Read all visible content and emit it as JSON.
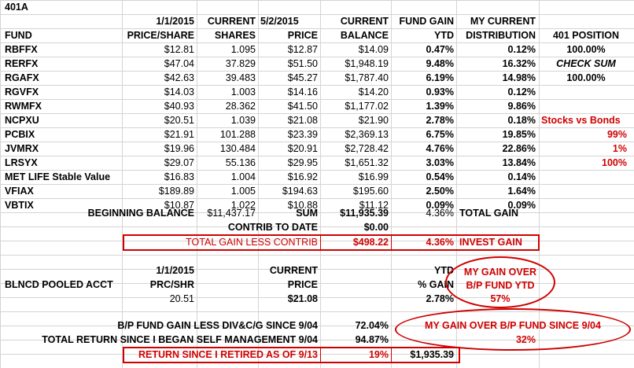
{
  "title": "401A",
  "header": {
    "row1": {
      "price_date": "1/1/2015",
      "shares": "CURRENT",
      "cur_date": "5/2/2015",
      "balance": "CURRENT",
      "gain": "FUND GAIN",
      "dist": "MY CURRENT"
    },
    "row2": {
      "fund": "FUND",
      "price": "PRICE/SHARE",
      "shares": "SHARES",
      "cur_price": "PRICE",
      "balance": "BALANCE",
      "gain": "YTD",
      "dist": "DISTRIBUTION",
      "position": "401 POSITION"
    }
  },
  "funds": [
    {
      "name": "RBFFX",
      "price": "$12.81",
      "shares": "1.095",
      "cur_price": "$12.87",
      "balance": "$14.09",
      "ytd": "0.47%",
      "dist": "0.12%"
    },
    {
      "name": "RERFX",
      "price": "$47.04",
      "shares": "37.829",
      "cur_price": "$51.50",
      "balance": "$1,948.19",
      "ytd": "9.48%",
      "dist": "16.32%"
    },
    {
      "name": "RGAFX",
      "price": "$42.63",
      "shares": "39.483",
      "cur_price": "$45.27",
      "balance": "$1,787.40",
      "ytd": "6.19%",
      "dist": "14.98%"
    },
    {
      "name": "RGVFX",
      "price": "$14.03",
      "shares": "1.003",
      "cur_price": "$14.16",
      "balance": "$14.20",
      "ytd": "0.93%",
      "dist": "0.12%"
    },
    {
      "name": "RWMFX",
      "price": "$40.93",
      "shares": "28.362",
      "cur_price": "$41.50",
      "balance": "$1,177.02",
      "ytd": "1.39%",
      "dist": "9.86%"
    },
    {
      "name": "NCPXU",
      "price": "$20.51",
      "shares": "1.039",
      "cur_price": "$21.08",
      "balance": "$21.90",
      "ytd": "2.78%",
      "dist": "0.18%"
    },
    {
      "name": "PCBIX",
      "price": "$21.91",
      "shares": "101.288",
      "cur_price": "$23.39",
      "balance": "$2,369.13",
      "ytd": "6.75%",
      "dist": "19.85%"
    },
    {
      "name": "JVMRX",
      "price": "$19.96",
      "shares": "130.484",
      "cur_price": "$20.91",
      "balance": "$2,728.42",
      "ytd": "4.76%",
      "dist": "22.86%"
    },
    {
      "name": "LRSYX",
      "price": "$29.07",
      "shares": "55.136",
      "cur_price": "$29.95",
      "balance": "$1,651.32",
      "ytd": "3.03%",
      "dist": "13.84%"
    },
    {
      "name": "MET LIFE Stable Value",
      "price": "$16.83",
      "shares": "1.004",
      "cur_price": "$16.92",
      "balance": "$16.99",
      "ytd": "0.54%",
      "dist": "0.14%"
    },
    {
      "name": "VFIAX",
      "price": "$189.89",
      "shares": "1.005",
      "cur_price": "$194.63",
      "balance": "$195.60",
      "ytd": "2.50%",
      "dist": "1.64%"
    },
    {
      "name": "VBTIX",
      "price": "$10.87",
      "shares": "1.022",
      "cur_price": "$10.88",
      "balance": "$11.12",
      "ytd": "0.09%",
      "dist": "0.09%"
    }
  ],
  "side": {
    "pos1": "100.00%",
    "check_sum": "CHECK SUM",
    "pos2": "100.00%",
    "stocks_vs_bonds": "Stocks vs Bonds",
    "pct1": "99%",
    "pct2": "1%",
    "pct3": "100%"
  },
  "summary": {
    "beginning_label": "BEGINNING BALANCE",
    "beginning_value": "$11,437.17",
    "sum_label": "SUM",
    "sum_value": "$11,935.39",
    "total_pct": "4.36%",
    "total_label": "TOTAL GAIN",
    "contrib_label": "CONTRIB TO DATE",
    "contrib_value": "$0.00",
    "gain_less_label": "TOTAL GAIN LESS CONTRIB",
    "gain_less_value": "$498.22",
    "invest_pct": "4.36%",
    "invest_label": "INVEST GAIN"
  },
  "pooled": {
    "date": "1/1/2015",
    "current": "CURRENT",
    "ytd": "YTD",
    "name": "BLNCD POOLED ACCT",
    "prc_label": "PRC/SHR",
    "price_label": "PRICE",
    "gain_label": "% GAIN",
    "prc_value": "20.51",
    "price_value": "$21.08",
    "gain_value": "2.78%",
    "over_line1": "MY GAIN OVER",
    "over_line2": "B/P FUND YTD",
    "over_value": "57%"
  },
  "footer": {
    "bp_label": "B/P FUND GAIN LESS DIV&C/G SINCE 9/04",
    "bp_value": "72.04%",
    "total_label": "TOTAL RETURN SINCE I BEGAN SELF MANAGEMENT 9/04",
    "total_value": "94.87%",
    "over_label": "MY GAIN OVER  B/P FUND  SINCE 9/04",
    "over_value": "32%",
    "retired_label": "RETURN SINCE I RETIRED AS OF 9/13",
    "retired_pct": "19%",
    "retired_value": "$1,935.39"
  }
}
